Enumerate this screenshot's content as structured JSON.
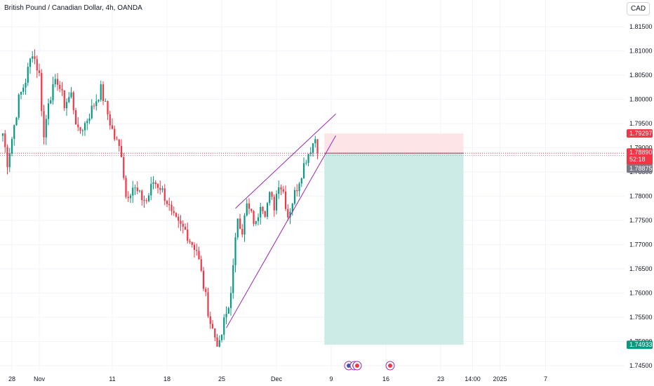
{
  "header": {
    "title": "British Pound / Canadian Dollar, 4h, OANDA"
  },
  "currency_button": {
    "label": "CAD"
  },
  "price_badges": {
    "upper": "1.79297",
    "current": "1.78890",
    "countdown": "52:18",
    "lower_current": "1.78875",
    "target": "1.74933"
  },
  "colors": {
    "up": "#089981",
    "down": "#f23645",
    "wedge": "#9c27b0",
    "profit_zone": "#ccebe6",
    "loss_zone": "#fde4e6",
    "grid": "#f0f3fa"
  },
  "event_icons": [
    "british-flag-icon",
    "canadian-flag-icon",
    "canadian-flag-icon",
    "canadian-flag-icon"
  ],
  "chart_data": {
    "type": "candlestick",
    "title": "British Pound / Canadian Dollar, 4h, OANDA",
    "currency": "CAD",
    "y_axis": {
      "ticks": [
        "1.81500",
        "1.81000",
        "1.80500",
        "1.80000",
        "1.79500",
        "1.79000",
        "1.78500",
        "1.78000",
        "1.77500",
        "1.77000",
        "1.76500",
        "1.76000",
        "1.75500",
        "1.75000",
        "1.74500"
      ],
      "range": [
        1.744,
        1.8185
      ]
    },
    "x_axis": {
      "ticks": [
        {
          "label": "28",
          "t": 4
        },
        {
          "label": "Nov",
          "t": 16
        },
        {
          "label": "11",
          "t": 48
        },
        {
          "label": "18",
          "t": 72
        },
        {
          "label": "25",
          "t": 96
        },
        {
          "label": "Dec",
          "t": 120
        },
        {
          "label": "9",
          "t": 144
        },
        {
          "label": "16",
          "t": 168
        },
        {
          "label": "23",
          "t": 192
        },
        {
          "label": "14:00",
          "t": 206
        },
        {
          "label": "2025",
          "t": 218
        },
        {
          "label": "7",
          "t": 238
        }
      ]
    },
    "keypoints": [
      [
        0,
        1.793
      ],
      [
        2,
        1.787
      ],
      [
        4,
        1.792
      ],
      [
        7,
        1.8
      ],
      [
        10,
        1.804
      ],
      [
        13,
        1.81
      ],
      [
        16,
        1.805
      ],
      [
        18,
        1.792
      ],
      [
        20,
        1.8
      ],
      [
        24,
        1.804
      ],
      [
        27,
        1.799
      ],
      [
        30,
        1.801
      ],
      [
        33,
        1.793
      ],
      [
        36,
        1.795
      ],
      [
        40,
        1.799
      ],
      [
        43,
        1.802
      ],
      [
        46,
        1.797
      ],
      [
        49,
        1.792
      ],
      [
        52,
        1.789
      ],
      [
        54,
        1.78
      ],
      [
        57,
        1.782
      ],
      [
        60,
        1.78
      ],
      [
        63,
        1.779
      ],
      [
        66,
        1.783
      ],
      [
        69,
        1.782
      ],
      [
        72,
        1.779
      ],
      [
        74,
        1.776
      ],
      [
        77,
        1.774
      ],
      [
        80,
        1.773
      ],
      [
        82,
        1.771
      ],
      [
        85,
        1.769
      ],
      [
        87,
        1.764
      ],
      [
        89,
        1.759
      ],
      [
        91,
        1.754
      ],
      [
        93,
        1.751
      ],
      [
        95,
        1.749
      ],
      [
        97,
        1.754
      ],
      [
        99,
        1.757
      ],
      [
        101,
        1.765
      ],
      [
        103,
        1.776
      ],
      [
        105,
        1.773
      ],
      [
        107,
        1.778
      ],
      [
        109,
        1.776
      ],
      [
        111,
        1.774
      ],
      [
        113,
        1.779
      ],
      [
        115,
        1.777
      ],
      [
        117,
        1.78
      ],
      [
        119,
        1.778
      ],
      [
        121,
        1.783
      ],
      [
        123,
        1.781
      ],
      [
        125,
        1.776
      ],
      [
        127,
        1.779
      ],
      [
        129,
        1.782
      ],
      [
        131,
        1.785
      ],
      [
        133,
        1.788
      ],
      [
        135,
        1.79
      ],
      [
        137,
        1.792
      ],
      [
        138,
        1.7889
      ]
    ],
    "rising_wedge": {
      "upper": [
        [
          102,
          1.7775
        ],
        [
          146,
          1.797
        ]
      ],
      "lower": [
        [
          98,
          1.7528
        ],
        [
          146,
          1.7925
        ]
      ]
    },
    "position": {
      "type": "short",
      "entry": 1.7889,
      "stop": 1.79297,
      "target": 1.74933,
      "start_t": 141,
      "end_t": 202
    },
    "last_price": 1.7889,
    "bid": 1.78875
  }
}
